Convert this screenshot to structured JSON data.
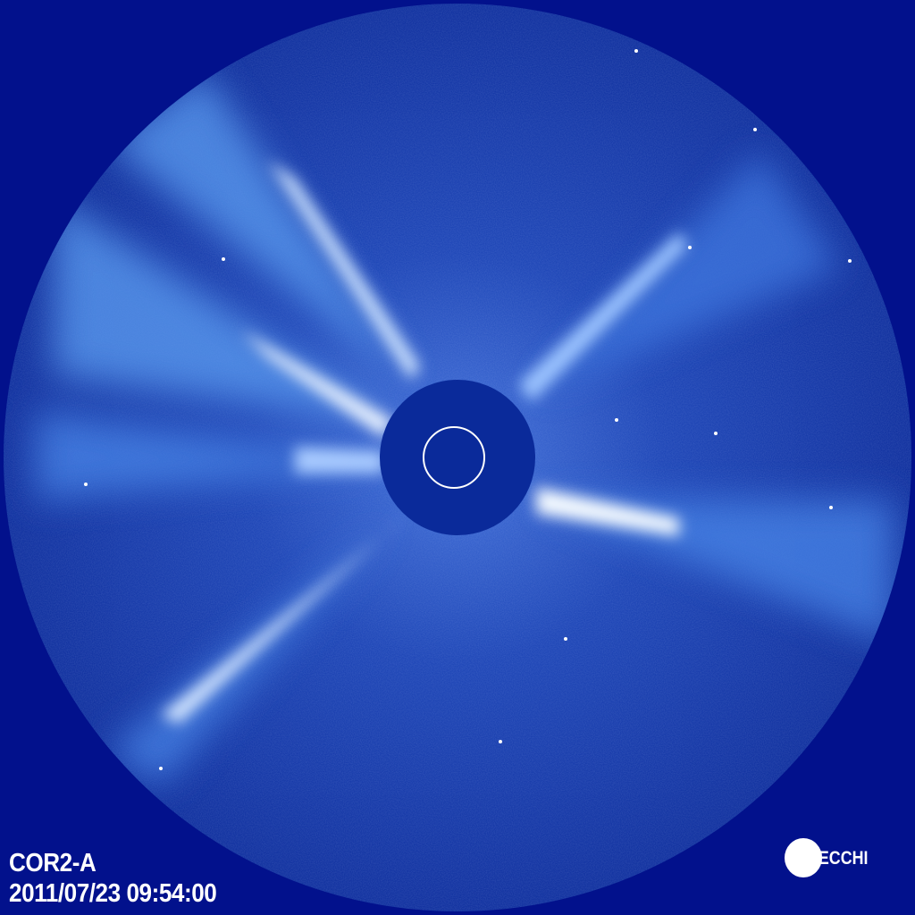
{
  "image": {
    "instrument": "COR2-A",
    "timestamp": "2011/07/23 09:54:00",
    "logo_text": "SECCHI",
    "colors": {
      "background": "#02118c",
      "disc": "#1a3fb0",
      "occulter": "#0a2a9a",
      "streamer": "#ffffff"
    }
  }
}
